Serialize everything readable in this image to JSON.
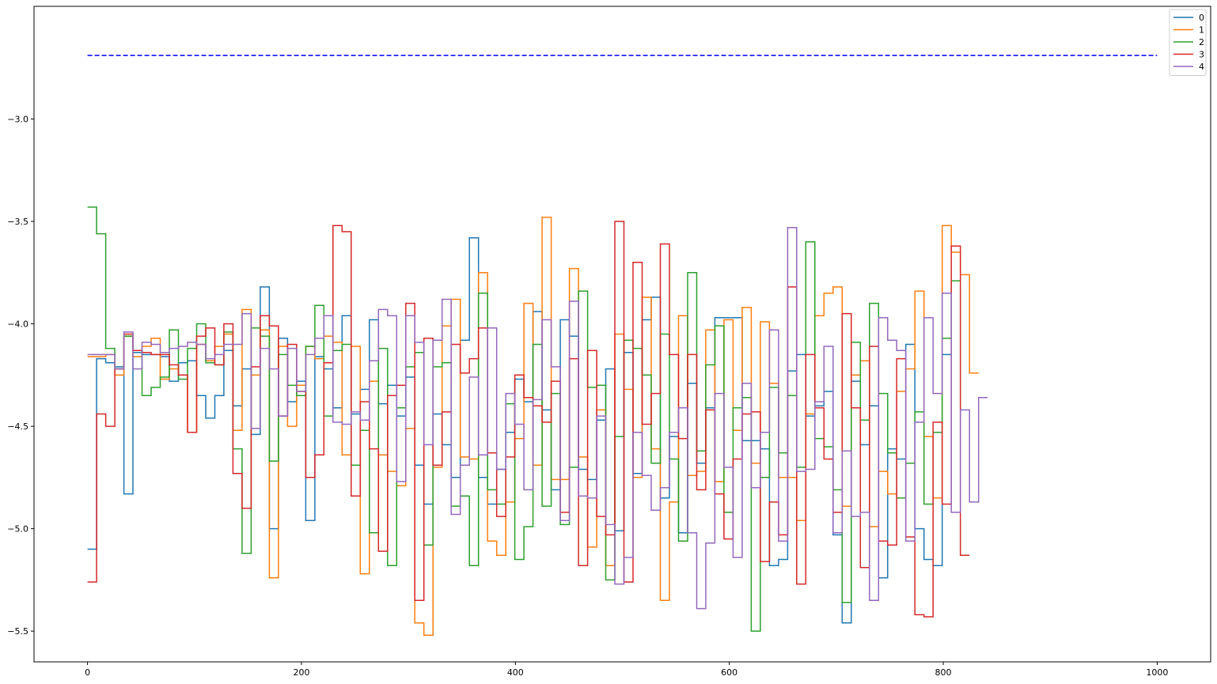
{
  "chart_data": {
    "type": "line",
    "title": "",
    "xlabel": "",
    "ylabel": "",
    "xlim": [
      -50,
      1050
    ],
    "ylim": [
      -5.65,
      -2.45
    ],
    "x_ticks": [
      0,
      200,
      400,
      600,
      800,
      1000
    ],
    "y_ticks": [
      -5.5,
      -5.0,
      -4.5,
      -4.0,
      -3.5,
      -3.0
    ],
    "x_tick_labels": [
      "0",
      "200",
      "400",
      "600",
      "800",
      "1000"
    ],
    "y_tick_labels": [
      "−5.5",
      "−5.0",
      "−4.5",
      "−4.0",
      "−3.5",
      "−3.0"
    ],
    "grid": false,
    "legend_position": "top-right",
    "reference_line": {
      "y": -2.69,
      "x_start": 0,
      "x_end": 1000,
      "color": "#0000ff",
      "style": "dashed"
    },
    "step": 8.5,
    "series": [
      {
        "name": "0",
        "color": "#1f77b4",
        "values": [
          -5.1,
          -4.17,
          -4.19,
          -4.21,
          -4.83,
          -4.14,
          -4.15,
          -4.15,
          -4.16,
          -4.28,
          -4.19,
          -4.18,
          -4.35,
          -4.46,
          -4.35,
          -4.13,
          -4.4,
          -4.22,
          -4.54,
          -3.82,
          -5.0,
          -4.07,
          -4.38,
          -4.28,
          -4.96,
          -4.16,
          -4.22,
          -4.41,
          -3.96,
          -4.44,
          -4.32,
          -3.98,
          -4.39,
          -4.3,
          -4.45,
          -4.26,
          -4.69,
          -4.88,
          -4.44,
          -4.59,
          -4.75,
          -4.08,
          -3.58,
          -4.75,
          -4.88,
          -4.71,
          -4.53,
          -4.27,
          -4.38,
          -3.94,
          -4.42,
          -4.81,
          -3.98,
          -4.06,
          -4.71,
          -4.76,
          -4.47,
          -4.22,
          -5.01,
          -4.14,
          -4.73,
          -3.98,
          -3.87,
          -4.85,
          -4.55,
          -5.02,
          -4.29,
          -4.68,
          -4.41,
          -3.97,
          -3.97,
          -3.97,
          -4.57,
          -4.57,
          -4.61,
          -5.18,
          -5.15,
          -4.23,
          -4.15,
          -4.45,
          -4.4,
          -4.33,
          -5.03,
          -5.46,
          -4.28,
          -4.59,
          -4.4,
          -5.24,
          -4.61,
          -4.66,
          -4.1,
          -5.0,
          -5.15,
          -5.18,
          -4.15
        ]
      },
      {
        "name": "1",
        "color": "#ff7f0e",
        "values": [
          -4.16,
          -4.16,
          -4.15,
          -4.25,
          -4.06,
          -4.16,
          -4.11,
          -4.07,
          -4.27,
          -4.22,
          -4.25,
          -4.53,
          -4.1,
          -4.18,
          -4.11,
          -4.05,
          -4.52,
          -3.93,
          -4.25,
          -4.03,
          -5.24,
          -4.11,
          -4.5,
          -4.3,
          -4.11,
          -4.17,
          -4.06,
          -4.09,
          -4.64,
          -4.11,
          -5.22,
          -4.28,
          -4.64,
          -4.72,
          -4.79,
          -4.51,
          -5.46,
          -5.52,
          -4.7,
          -4.01,
          -3.88,
          -4.65,
          -4.66,
          -3.75,
          -5.06,
          -5.13,
          -4.87,
          -4.56,
          -3.9,
          -4.69,
          -3.48,
          -4.76,
          -4.76,
          -3.73,
          -4.65,
          -5.09,
          -4.42,
          -5.18,
          -4.05,
          -4.32,
          -4.75,
          -3.87,
          -4.61,
          -5.35,
          -4.87,
          -3.96,
          -4.74,
          -4.72,
          -4.03,
          -4.77,
          -3.98,
          -4.52,
          -3.92,
          -4.68,
          -3.99,
          -4.29,
          -4.75,
          -4.75,
          -4.96,
          -4.44,
          -3.96,
          -3.85,
          -3.82,
          -4.89,
          -4.25,
          -4.18,
          -4.99,
          -4.72,
          -4.83,
          -4.33,
          -4.22,
          -3.84,
          -4.55,
          -4.85,
          -3.52,
          -3.65,
          -3.76,
          -4.24
        ]
      },
      {
        "name": "2",
        "color": "#2ca02c",
        "values": [
          -3.43,
          -3.56,
          -4.12,
          -4.22,
          -4.06,
          -4.13,
          -4.35,
          -4.31,
          -4.26,
          -4.03,
          -4.27,
          -4.12,
          -4.0,
          -4.19,
          -4.2,
          -4.04,
          -4.61,
          -5.12,
          -4.02,
          -4.06,
          -4.67,
          -4.15,
          -4.3,
          -4.35,
          -4.11,
          -3.91,
          -4.45,
          -4.13,
          -4.1,
          -4.69,
          -4.52,
          -5.02,
          -4.12,
          -5.18,
          -4.41,
          -4.21,
          -4.14,
          -5.08,
          -4.21,
          -4.19,
          -4.89,
          -4.84,
          -5.18,
          -3.85,
          -4.81,
          -4.88,
          -4.39,
          -5.15,
          -4.99,
          -4.1,
          -4.89,
          -4.34,
          -4.98,
          -4.7,
          -3.84,
          -4.31,
          -4.3,
          -5.25,
          -4.55,
          -4.08,
          -4.12,
          -4.25,
          -4.68,
          -4.05,
          -4.66,
          -5.06,
          -3.75,
          -4.62,
          -4.2,
          -4.01,
          -4.92,
          -4.41,
          -4.36,
          -5.5,
          -4.75,
          -4.31,
          -4.63,
          -4.35,
          -4.7,
          -3.6,
          -4.56,
          -4.6,
          -4.81,
          -5.36,
          -4.09,
          -4.47,
          -3.9,
          -4.34,
          -4.63,
          -4.85,
          -4.68,
          -4.43,
          -4.88,
          -4.53,
          -4.07,
          -3.79
        ]
      },
      {
        "name": "3",
        "color": "#d62728",
        "values": [
          -5.26,
          -4.44,
          -4.5,
          -4.22,
          -4.05,
          -4.13,
          -4.14,
          -4.15,
          -4.15,
          -4.2,
          -4.25,
          -4.53,
          -4.06,
          -4.02,
          -4.2,
          -4.0,
          -4.73,
          -4.9,
          -4.21,
          -3.96,
          -4.01,
          -4.45,
          -4.1,
          -4.33,
          -4.75,
          -4.64,
          -4.19,
          -3.52,
          -3.55,
          -4.84,
          -4.38,
          -4.61,
          -5.11,
          -4.35,
          -4.3,
          -3.9,
          -5.35,
          -4.07,
          -4.69,
          -4.43,
          -4.1,
          -4.24,
          -4.17,
          -4.02,
          -4.63,
          -4.94,
          -4.65,
          -4.25,
          -4.36,
          -4.4,
          -4.48,
          -4.28,
          -4.92,
          -4.17,
          -5.18,
          -4.13,
          -4.94,
          -5.03,
          -3.5,
          -5.26,
          -3.7,
          -4.49,
          -4.34,
          -3.61,
          -4.15,
          -4.56,
          -4.15,
          -4.81,
          -4.42,
          -4.83,
          -5.05,
          -4.66,
          -4.44,
          -4.43,
          -5.16,
          -4.87,
          -5.03,
          -3.82,
          -5.27,
          -4.15,
          -4.41,
          -4.66,
          -4.92,
          -3.95,
          -4.41,
          -5.19,
          -4.11,
          -5.06,
          -5.08,
          -4.17,
          -5.04,
          -5.42,
          -5.43,
          -4.48,
          -4.88,
          -3.62,
          -5.13
        ]
      },
      {
        "name": "4",
        "color": "#9467bd",
        "values": [
          -4.15,
          -4.15,
          -4.15,
          -4.22,
          -4.04,
          -4.22,
          -4.09,
          -4.1,
          -4.14,
          -4.12,
          -4.11,
          -4.09,
          -4.1,
          -4.17,
          -4.15,
          -4.1,
          -4.1,
          -3.95,
          -4.51,
          -4.12,
          -4.22,
          -4.45,
          -4.12,
          -4.33,
          -4.15,
          -4.07,
          -3.96,
          -4.48,
          -4.49,
          -4.43,
          -4.47,
          -4.18,
          -3.93,
          -3.96,
          -4.77,
          -3.96,
          -4.09,
          -4.59,
          -4.08,
          -3.88,
          -4.93,
          -4.69,
          -4.26,
          -4.64,
          -4.02,
          -4.71,
          -4.34,
          -4.49,
          -4.81,
          -4.37,
          -3.98,
          -4.21,
          -4.96,
          -3.89,
          -4.84,
          -4.85,
          -4.45,
          -4.98,
          -5.27,
          -5.14,
          -4.53,
          -4.74,
          -4.91,
          -4.8,
          -4.53,
          -4.41,
          -5.02,
          -5.39,
          -5.07,
          -4.34,
          -4.7,
          -5.14,
          -4.29,
          -4.8,
          -4.53,
          -4.03,
          -5.06,
          -3.53,
          -4.72,
          -4.71,
          -4.38,
          -4.11,
          -5.02,
          -4.62,
          -4.94,
          -4.92,
          -5.35,
          -3.97,
          -4.08,
          -4.13,
          -5.06,
          -4.48,
          -3.97,
          -4.34,
          -3.85,
          -4.92,
          -4.42,
          -4.87,
          -4.36
        ]
      }
    ]
  }
}
